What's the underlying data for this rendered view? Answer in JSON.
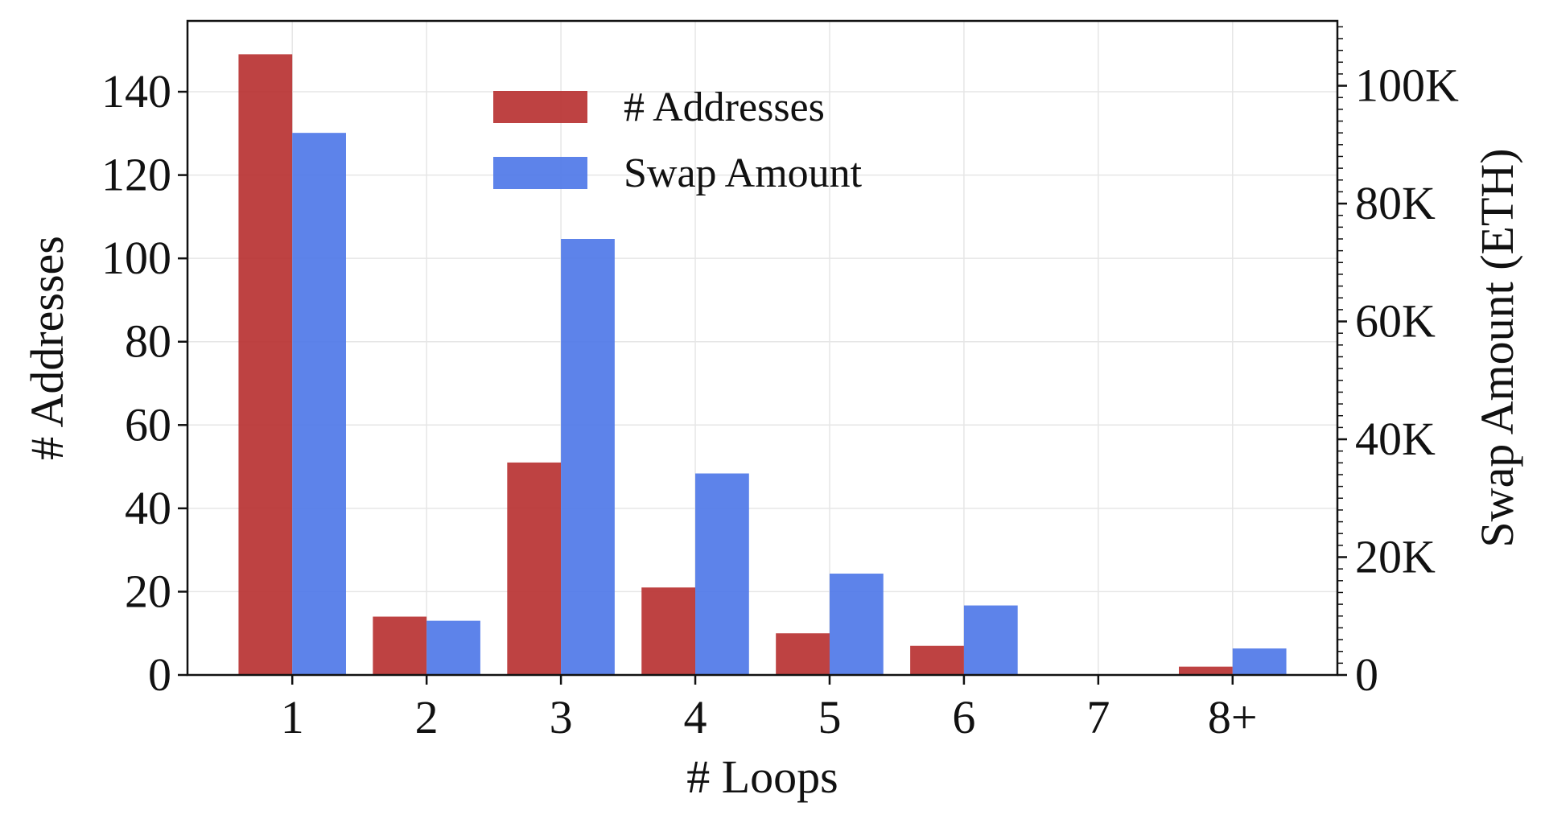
{
  "chart_data": {
    "type": "bar",
    "xlabel": "# Loops",
    "ylabel_left": "# Addresses",
    "ylabel_right": "Swap Amount (ETH)",
    "categories": [
      "1",
      "2",
      "3",
      "4",
      "5",
      "6",
      "7",
      "8+"
    ],
    "series": [
      {
        "name": "# Addresses",
        "axis": "left",
        "color": "#b83232",
        "values": [
          149,
          14,
          51,
          21,
          10,
          7,
          0,
          2
        ]
      },
      {
        "name": "Swap Amount",
        "axis": "right",
        "color": "#4f78e8",
        "values": [
          92000,
          9200,
          74000,
          34200,
          17200,
          11800,
          0,
          4500
        ]
      }
    ],
    "ylim_left": [
      0,
      157
    ],
    "yticks_left": [
      0,
      20,
      40,
      60,
      80,
      100,
      120,
      140
    ],
    "ylim_right": [
      0,
      111000
    ],
    "yticks_right": [
      0,
      20000,
      40000,
      60000,
      80000,
      100000
    ],
    "yticklabels_right": [
      "0",
      "20K",
      "40K",
      "60K",
      "80K",
      "100K"
    ],
    "grid": true,
    "legend_position": "upper-center"
  }
}
